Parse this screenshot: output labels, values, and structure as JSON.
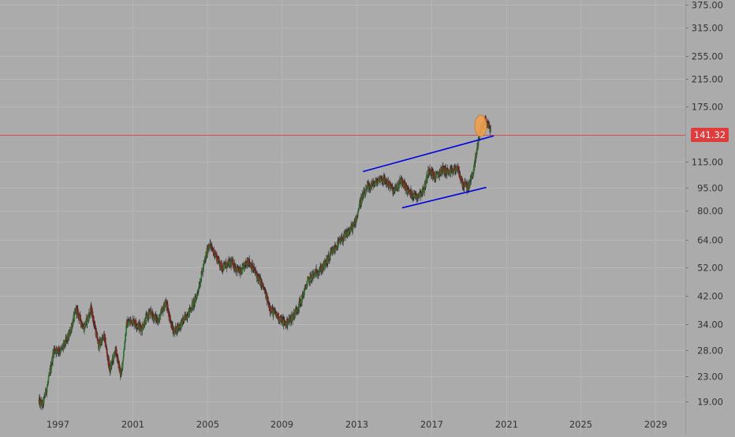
{
  "colors": {
    "background": "#ababab",
    "grid": "#b6b6b6",
    "up_candle": "#2e7d32",
    "down_candle": "#8b1a1a",
    "wick": "#2a2a2a",
    "trendline": "#0000e0",
    "price_line": "#d85050",
    "price_badge": "#e23b3b",
    "highlight": "#f0a050",
    "axis_text": "#333333"
  },
  "chart_data": {
    "type": "candlestick",
    "scale": "log",
    "y_ticks": [
      "375.00",
      "315.00",
      "255.00",
      "215.00",
      "175.00",
      "115.00",
      "95.00",
      "80.00",
      "64.00",
      "52.00",
      "42.00",
      "34.00",
      "28.00",
      "23.00",
      "19.00"
    ],
    "x_ticks": [
      "1997",
      "2001",
      "2005",
      "2009",
      "2013",
      "2017",
      "2021",
      "2025",
      "2029"
    ],
    "last_price": "141.32",
    "xlim": [
      1995.5,
      2030.5
    ],
    "ylim": [
      17.5,
      400
    ],
    "grid": true,
    "anchors": [
      [
        1996.0,
        19
      ],
      [
        1996.2,
        18.5
      ],
      [
        1996.5,
        22
      ],
      [
        1996.8,
        28
      ],
      [
        1997.2,
        28
      ],
      [
        1997.6,
        31
      ],
      [
        1998.0,
        38
      ],
      [
        1998.4,
        33
      ],
      [
        1998.8,
        38
      ],
      [
        1999.2,
        29
      ],
      [
        1999.5,
        31
      ],
      [
        1999.8,
        24
      ],
      [
        2000.1,
        28
      ],
      [
        2000.4,
        23
      ],
      [
        2000.7,
        34
      ],
      [
        2001.0,
        35
      ],
      [
        2001.5,
        33
      ],
      [
        2001.9,
        37
      ],
      [
        2002.4,
        35
      ],
      [
        2002.8,
        40
      ],
      [
        2003.2,
        32
      ],
      [
        2003.6,
        34
      ],
      [
        2004.0,
        37
      ],
      [
        2004.4,
        41
      ],
      [
        2004.8,
        52
      ],
      [
        2005.1,
        62
      ],
      [
        2005.4,
        58
      ],
      [
        2005.8,
        52
      ],
      [
        2006.3,
        54
      ],
      [
        2006.8,
        50
      ],
      [
        2007.2,
        55
      ],
      [
        2007.6,
        50
      ],
      [
        2008.0,
        45
      ],
      [
        2008.4,
        38
      ],
      [
        2008.8,
        36
      ],
      [
        2009.2,
        34
      ],
      [
        2009.6,
        36
      ],
      [
        2010.0,
        40
      ],
      [
        2010.4,
        47
      ],
      [
        2010.8,
        50
      ],
      [
        2011.2,
        52
      ],
      [
        2011.6,
        57
      ],
      [
        2012.0,
        62
      ],
      [
        2012.5,
        67
      ],
      [
        2012.9,
        72
      ],
      [
        2013.2,
        85
      ],
      [
        2013.6,
        95
      ],
      [
        2014.0,
        98
      ],
      [
        2014.3,
        102
      ],
      [
        2014.7,
        98
      ],
      [
        2015.0,
        92
      ],
      [
        2015.4,
        100
      ],
      [
        2015.8,
        92
      ],
      [
        2016.2,
        89
      ],
      [
        2016.6,
        93
      ],
      [
        2016.9,
        110
      ],
      [
        2017.2,
        102
      ],
      [
        2017.6,
        109
      ],
      [
        2018.0,
        106
      ],
      [
        2018.4,
        110
      ],
      [
        2018.7,
        97
      ],
      [
        2019.0,
        95
      ],
      [
        2019.3,
        110
      ],
      [
        2019.6,
        145
      ],
      [
        2019.9,
        158
      ],
      [
        2020.2,
        146
      ]
    ],
    "trendlines": [
      {
        "x1": 2013.35,
        "y1": 107,
        "x2": 2020.35,
        "y2": 140
      },
      {
        "x1": 2015.45,
        "y1": 81.5,
        "x2": 2019.95,
        "y2": 95
      }
    ],
    "highlight": {
      "x": 2019.65,
      "y": 151
    }
  }
}
